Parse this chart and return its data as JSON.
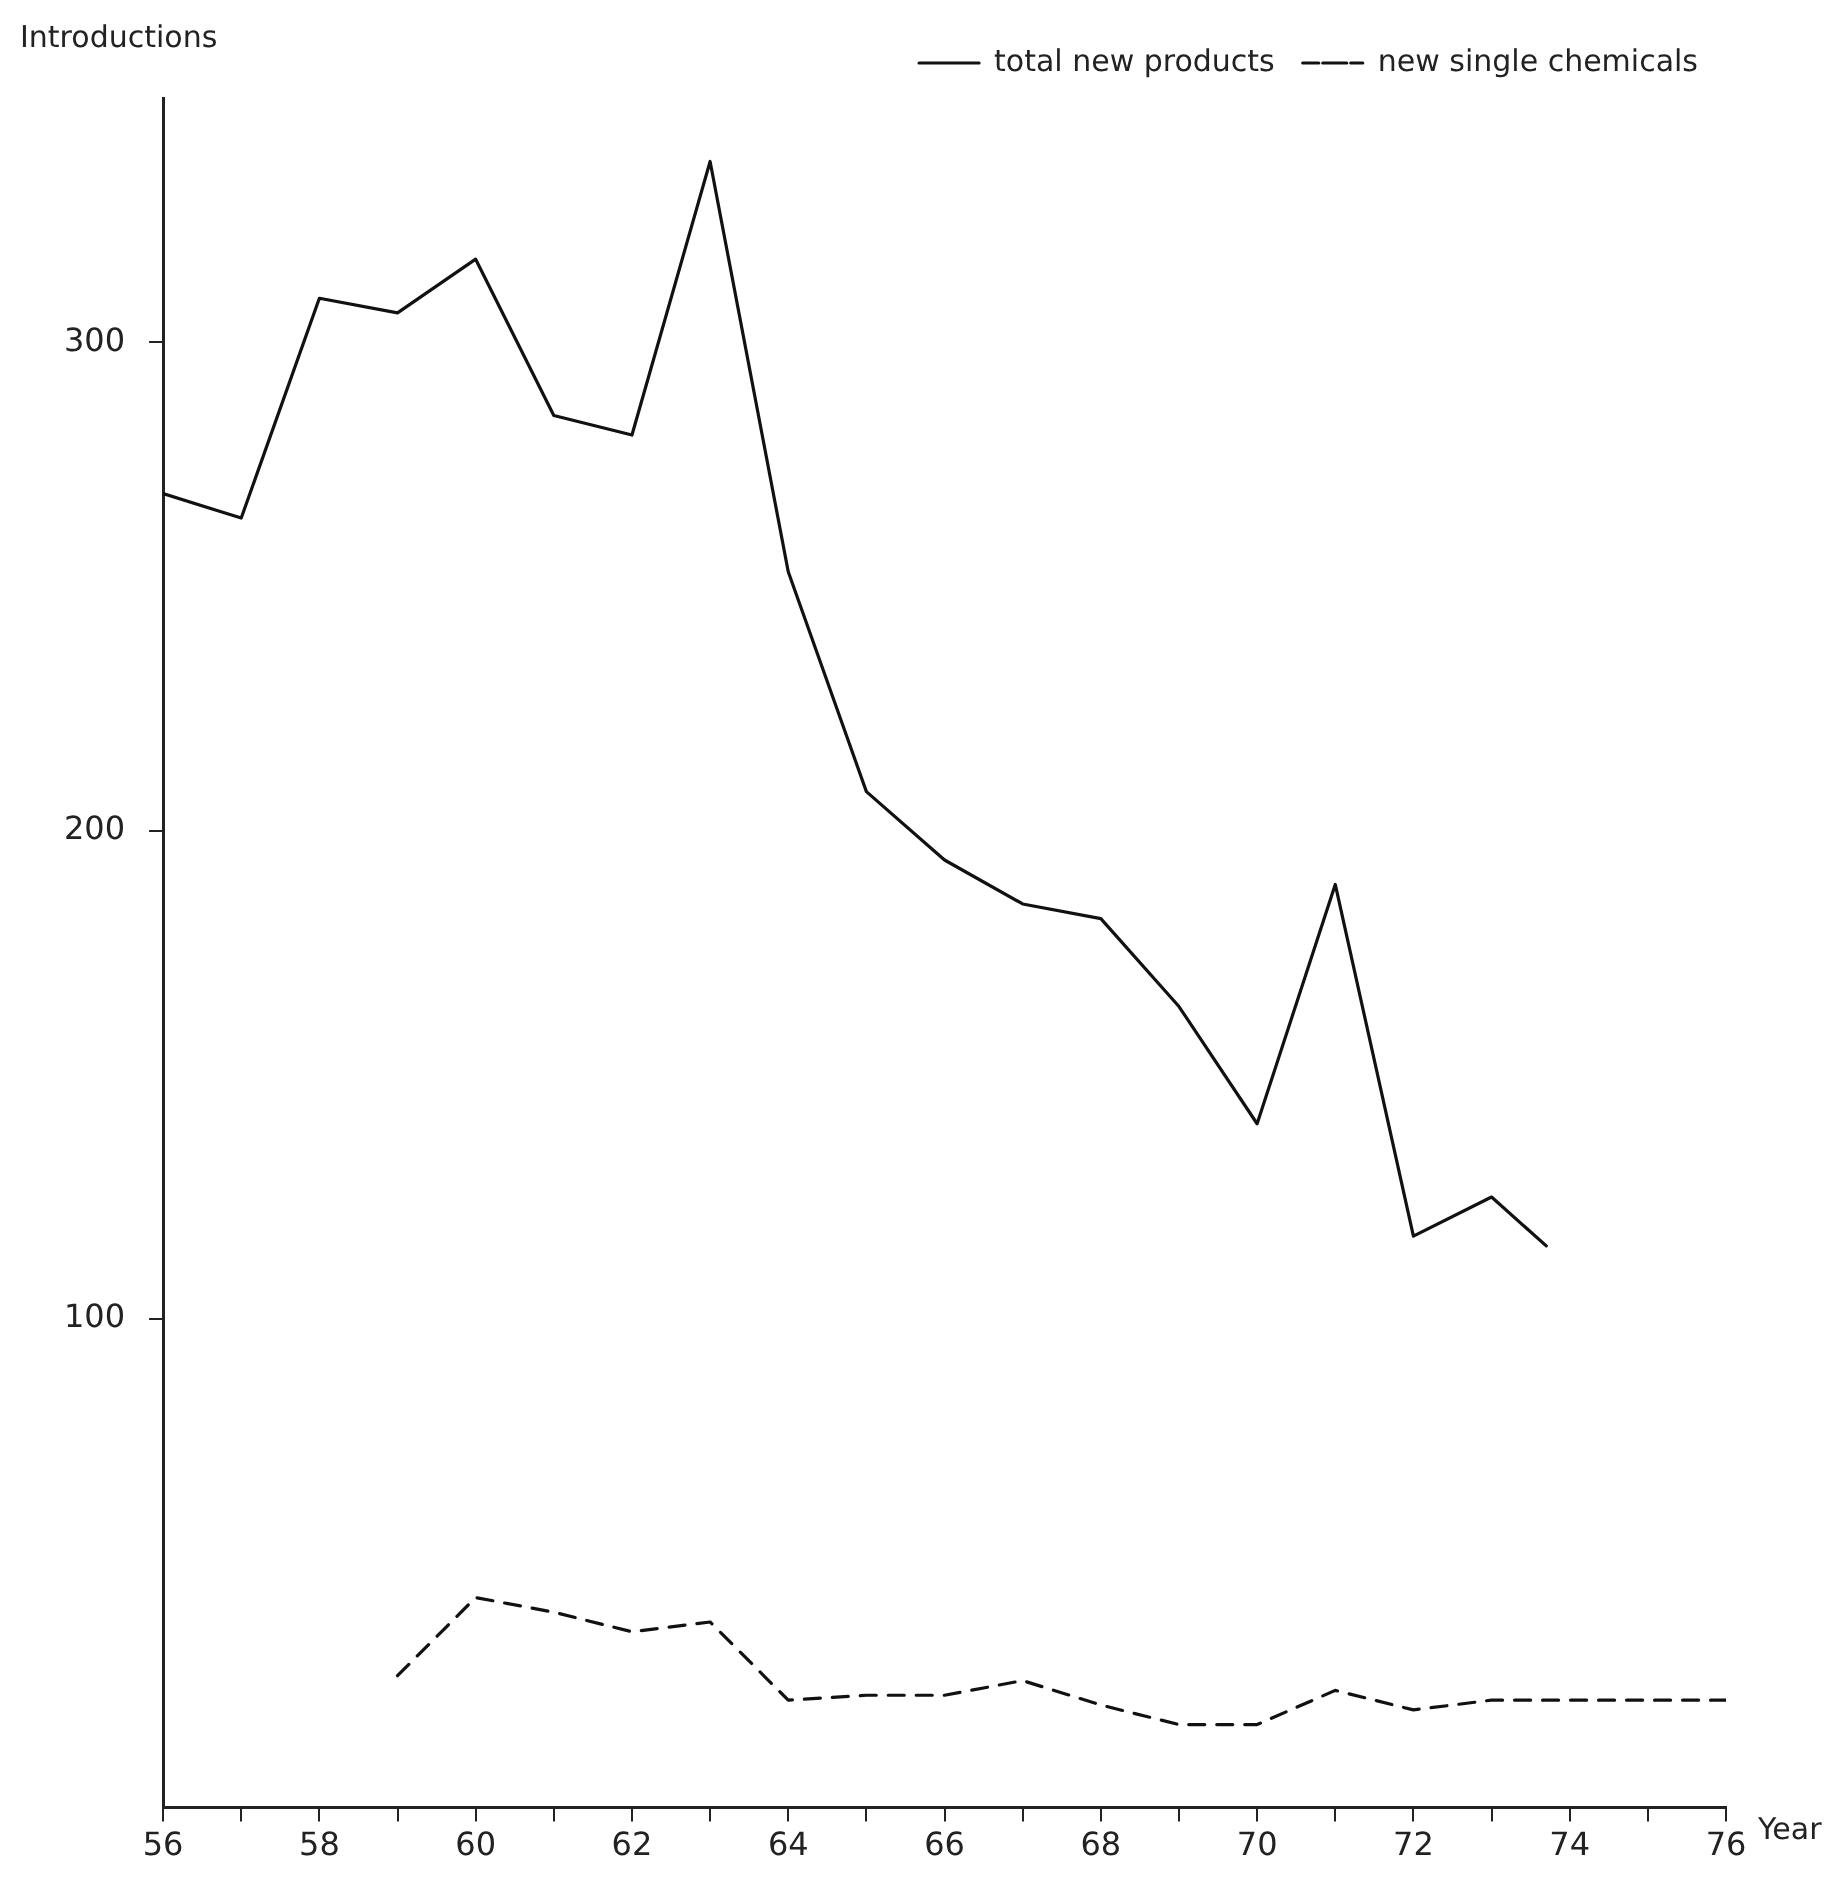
{
  "chart_data": {
    "type": "line",
    "xlabel": "Year",
    "ylabel": "Introductions",
    "x": [
      56,
      57,
      58,
      59,
      60,
      61,
      62,
      63,
      64,
      65,
      66,
      67,
      68,
      69,
      70,
      71,
      72,
      73,
      73.7
    ],
    "series": [
      {
        "name": "total new products",
        "color": "#111111",
        "line_style": "solid",
        "values": [
          269,
          264,
          309,
          306,
          317,
          285,
          281,
          337,
          253,
          208,
          194,
          185,
          182,
          164,
          140,
          189,
          117,
          125,
          115
        ]
      },
      {
        "name": "new single chemicals",
        "color": "#111111",
        "line_style": "dashed",
        "x": [
          59,
          60,
          61,
          62,
          63,
          64,
          65,
          66,
          67,
          68,
          69,
          70,
          71,
          72,
          73,
          74,
          75,
          76
        ],
        "values": [
          27,
          43,
          40,
          36,
          38,
          22,
          23,
          23,
          26,
          21,
          17,
          17,
          24,
          20,
          22,
          22,
          22,
          22
        ]
      }
    ],
    "xlim": [
      56,
      76
    ],
    "ylim": [
      0,
      350
    ],
    "xticks": [
      56,
      {
        "value": 57,
        "label": null
      },
      58,
      {
        "value": 59,
        "label": null
      },
      60,
      {
        "value": 61,
        "label": null
      },
      62,
      {
        "value": 63,
        "label": null
      },
      64,
      {
        "value": 65,
        "label": null
      },
      66,
      {
        "value": 67,
        "label": null
      },
      68,
      {
        "value": 69,
        "label": null
      },
      70,
      {
        "value": 71,
        "label": null
      },
      72,
      {
        "value": 73,
        "label": null
      },
      74,
      {
        "value": 75,
        "label": null
      },
      76
    ],
    "yticks": [
      100,
      200,
      300
    ],
    "grid": false,
    "legend": "top right",
    "marker": "none"
  }
}
